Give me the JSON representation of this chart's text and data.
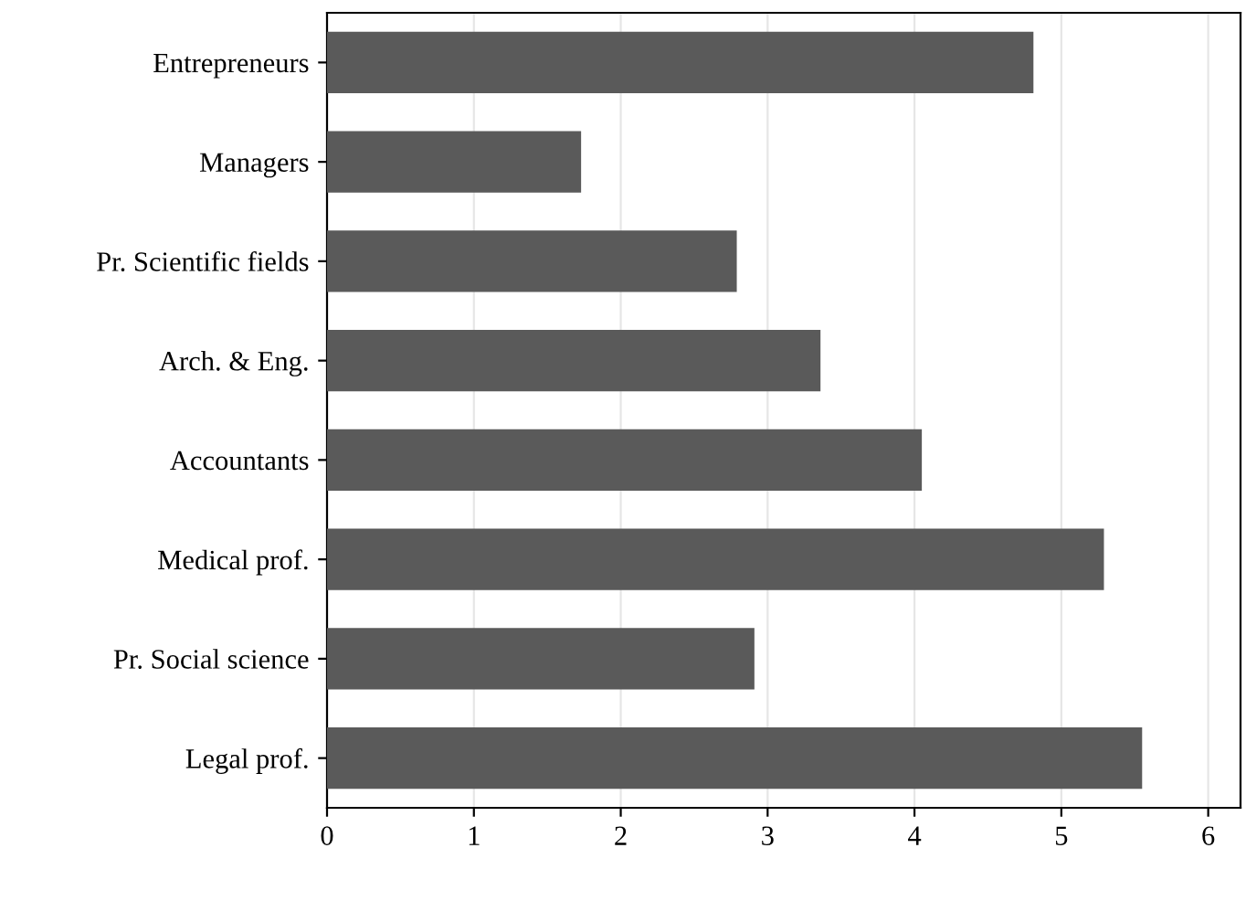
{
  "chart_data": {
    "type": "bar",
    "orientation": "horizontal",
    "categories": [
      "Entrepreneurs",
      "Managers",
      "Pr. Scientific fields",
      "Arch. & Eng.",
      "Accountants",
      "Medical prof.",
      "Pr. Social science",
      "Legal prof."
    ],
    "values": [
      4.81,
      1.73,
      2.79,
      3.36,
      4.05,
      5.29,
      2.91,
      5.55
    ],
    "color": "#5a5a5a",
    "xlim": [
      0,
      6.22
    ],
    "xticks": [
      0,
      1,
      2,
      3,
      4,
      5,
      6
    ],
    "grid": "x"
  }
}
